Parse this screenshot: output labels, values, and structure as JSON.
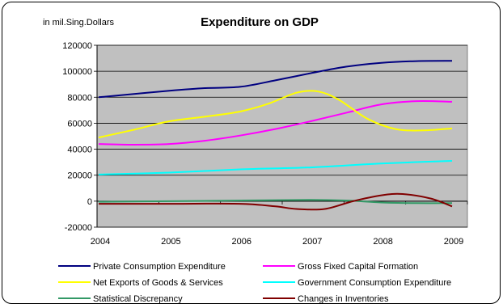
{
  "chart_data": {
    "type": "line",
    "title": "Expenditure on GDP",
    "unit_label": "in mil.Sing.Dollars",
    "xlabel": "",
    "ylabel": "",
    "x": [
      "2004",
      "2005",
      "2006",
      "2007",
      "2008",
      "2009"
    ],
    "ylim": [
      -20000,
      120000
    ],
    "yticks": [
      "-20000",
      "0",
      "20000",
      "40000",
      "60000",
      "80000",
      "100000",
      "120000"
    ],
    "grid": true,
    "plot_background": "#c0c0c0",
    "legend_position": "bottom",
    "series": [
      {
        "name": "Private Consumption Expenditure",
        "color": "#000080",
        "points": [
          [
            0,
            80000
          ],
          [
            0.5,
            82500
          ],
          [
            1,
            85000
          ],
          [
            1.5,
            87000
          ],
          [
            2,
            88000
          ],
          [
            2.5,
            93000
          ],
          [
            3,
            98500
          ],
          [
            3.5,
            103500
          ],
          [
            4,
            106500
          ],
          [
            4.5,
            107800
          ],
          [
            5,
            108000
          ]
        ]
      },
      {
        "name": "Gross Fixed Capital Formation",
        "color": "#ff00ff",
        "points": [
          [
            0,
            44000
          ],
          [
            0.5,
            43500
          ],
          [
            1,
            44000
          ],
          [
            1.5,
            46500
          ],
          [
            2,
            50500
          ],
          [
            2.5,
            55500
          ],
          [
            3,
            61500
          ],
          [
            3.5,
            68000
          ],
          [
            4,
            74500
          ],
          [
            4.5,
            77000
          ],
          [
            5,
            76500
          ]
        ]
      },
      {
        "name": "Net Exports of Goods & Services",
        "color": "#ffff00",
        "points": [
          [
            0,
            49000
          ],
          [
            0.5,
            55000
          ],
          [
            1,
            61500
          ],
          [
            1.5,
            65000
          ],
          [
            2,
            69000
          ],
          [
            2.4,
            75000
          ],
          [
            2.8,
            83500
          ],
          [
            3.1,
            84500
          ],
          [
            3.4,
            78000
          ],
          [
            3.8,
            63500
          ],
          [
            4.2,
            55500
          ],
          [
            4.6,
            54500
          ],
          [
            5,
            56000
          ]
        ]
      },
      {
        "name": "Government Consumption Expenditure",
        "color": "#00ffff",
        "points": [
          [
            0,
            20500
          ],
          [
            1,
            22000
          ],
          [
            2,
            24500
          ],
          [
            3,
            26000
          ],
          [
            4,
            29000
          ],
          [
            5,
            31000
          ]
        ]
      },
      {
        "name": "Statistical Discrepancy",
        "color": "#339966",
        "points": [
          [
            0,
            -500
          ],
          [
            1,
            0
          ],
          [
            2,
            500
          ],
          [
            3,
            1000
          ],
          [
            3.5,
            500
          ],
          [
            4,
            -1000
          ],
          [
            4.5,
            -1500
          ],
          [
            5,
            -1500
          ]
        ]
      },
      {
        "name": "Changes in Inventories",
        "color": "#800000",
        "points": [
          [
            0,
            -2000
          ],
          [
            1,
            -2000
          ],
          [
            2,
            -2000
          ],
          [
            2.5,
            -4000
          ],
          [
            2.8,
            -6000
          ],
          [
            3.2,
            -6000
          ],
          [
            3.6,
            0
          ],
          [
            4,
            4500
          ],
          [
            4.3,
            5500
          ],
          [
            4.7,
            2000
          ],
          [
            5,
            -4000
          ]
        ]
      }
    ]
  }
}
